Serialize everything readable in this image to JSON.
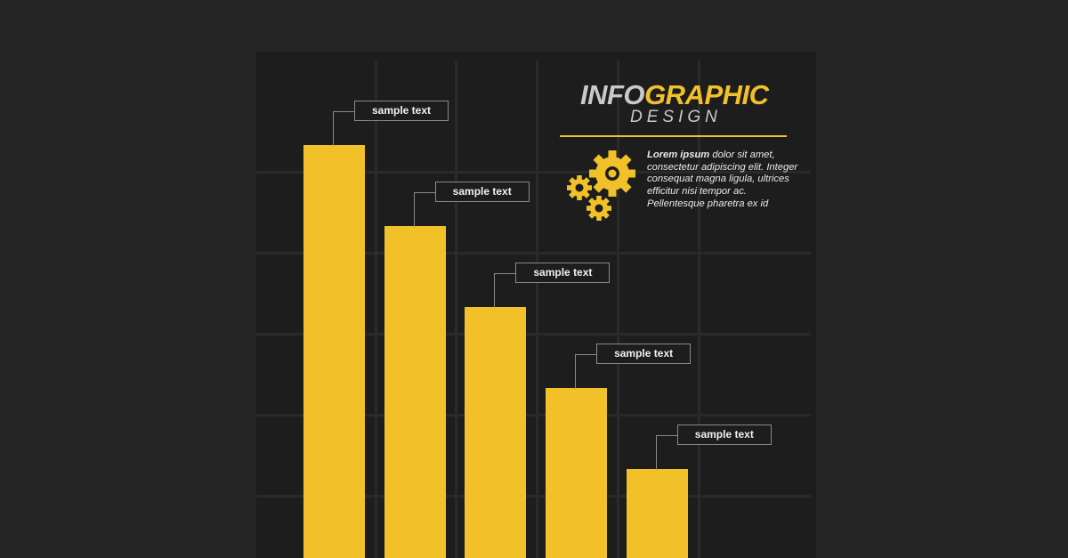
{
  "header": {
    "title_part1": "INFO",
    "title_part2": "GRAPHIC",
    "subtitle": "DESIGN"
  },
  "description": {
    "bold": "Lorem ipsum",
    "rest": " dolor sit amet, consectetur adipiscing elit. Integer consequat magna ligula, ultrices efficitur nisi tempor ac. Pellentesque pharetra ex id"
  },
  "icons": {
    "gears": "gears-icon"
  },
  "colors": {
    "accent": "#f2c12a",
    "background": "#252525",
    "panel": "#1d1d1d",
    "title_gray": "#c9c9cd"
  },
  "chart_data": {
    "type": "bar",
    "categories": [
      "sample text",
      "sample text",
      "sample text",
      "sample text",
      "sample text"
    ],
    "values": [
      5.1,
      4.1,
      3.1,
      2.1,
      1.1
    ],
    "title": "",
    "xlabel": "",
    "ylabel": "",
    "ylim": [
      0,
      6.2
    ],
    "grid": true,
    "axes": false,
    "bar_color": "#f2c12a"
  }
}
